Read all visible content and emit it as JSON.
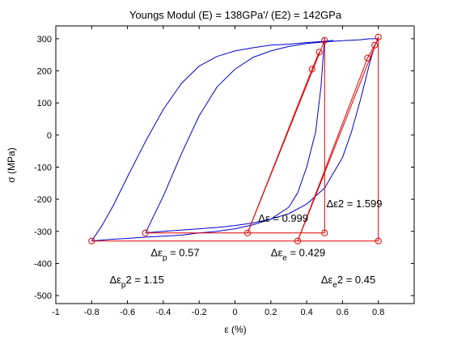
{
  "chart_data": {
    "type": "line",
    "title": "Youngs Modul (E) = 138GPa'/ (E2) = 142GPa",
    "xlabel": "ε (%)",
    "ylabel": "σ (MPa)",
    "xlim": [
      -1,
      1
    ],
    "ylim": [
      -525,
      340
    ],
    "xticks": [
      -1,
      -0.8,
      -0.6,
      -0.4,
      -0.2,
      0,
      0.2,
      0.4,
      0.6,
      0.8
    ],
    "yticks": [
      -500,
      -400,
      -300,
      -200,
      -100,
      0,
      100,
      200,
      300
    ],
    "grid": false,
    "colors": {
      "curve": "#0000cc",
      "markup": "#e00000"
    },
    "series": [
      {
        "style": "blue-line",
        "x": [
          -0.8,
          -0.74,
          -0.68,
          -0.6,
          -0.5,
          -0.4,
          -0.3,
          -0.2,
          -0.1,
          0.0,
          0.1,
          0.2,
          0.3,
          0.4,
          0.5,
          0.55
        ],
        "y": [
          -330,
          -280,
          -220,
          -130,
          -20,
          80,
          160,
          215,
          245,
          262,
          272,
          280,
          283,
          288,
          292,
          295
        ]
      },
      {
        "style": "blue-line",
        "x": [
          -0.8,
          -0.7,
          -0.6,
          -0.5,
          -0.4,
          -0.3,
          -0.2,
          -0.1,
          0.0,
          0.1,
          0.2,
          0.3,
          0.35,
          0.4,
          0.45,
          0.48,
          0.5
        ],
        "y": [
          -330,
          -325,
          -322,
          -318,
          -315,
          -312,
          -305,
          -300,
          -292,
          -280,
          -262,
          -225,
          -180,
          -100,
          10,
          150,
          305
        ]
      },
      {
        "style": "blue-line",
        "x": [
          -0.5,
          -0.4,
          -0.3,
          -0.2,
          -0.1,
          0.0,
          0.1,
          0.2,
          0.3,
          0.4,
          0.5,
          0.6,
          0.7,
          0.75,
          0.8
        ],
        "y": [
          -305,
          -190,
          -60,
          60,
          150,
          205,
          242,
          262,
          276,
          285,
          290,
          294,
          297,
          300,
          300
        ]
      },
      {
        "style": "blue-line",
        "x": [
          -0.5,
          -0.4,
          -0.3,
          -0.2,
          -0.1,
          0.0,
          0.1,
          0.2,
          0.3,
          0.4,
          0.5,
          0.6,
          0.65,
          0.7,
          0.75,
          0.78,
          0.8
        ],
        "y": [
          -305,
          -300,
          -296,
          -292,
          -288,
          -282,
          -274,
          -262,
          -245,
          -215,
          -165,
          -70,
          10,
          110,
          220,
          280,
          300
        ]
      },
      {
        "style": "red-line",
        "x": [
          -0.8,
          0.8,
          0.8,
          0.35,
          0.8
        ],
        "y": [
          -330,
          -330,
          305,
          -330,
          305
        ]
      },
      {
        "style": "red-line",
        "x": [
          -0.5,
          0.5,
          0.5,
          0.07,
          0.5
        ],
        "y": [
          -305,
          -305,
          295,
          -305,
          295
        ]
      },
      {
        "style": "red-line",
        "x": [
          0.07,
          0.43,
          0.47
        ],
        "y": [
          -305,
          205,
          258
        ]
      },
      {
        "style": "red-line",
        "x": [
          0.35,
          0.74,
          0.78
        ],
        "y": [
          -330,
          240,
          280
        ]
      },
      {
        "style": "red-circles",
        "x": [
          -0.8,
          -0.5,
          0.07,
          0.5,
          0.35,
          0.8,
          0.43,
          0.47,
          0.5,
          0.74,
          0.78,
          0.8
        ],
        "y": [
          -330,
          -305,
          -305,
          -305,
          -330,
          -330,
          205,
          258,
          295,
          240,
          280,
          305
        ]
      }
    ],
    "annotations": [
      {
        "text": "Δε2 = 1.599",
        "x": 0.51,
        "y": -225
      },
      {
        "text": "Δε = 0.999",
        "x": 0.13,
        "y": -270
      },
      {
        "text": "Δε",
        "sub": "p",
        "after": " = 0.57",
        "x": -0.47,
        "y": -378
      },
      {
        "text": "Δε",
        "sub": "e",
        "after": " = 0.429",
        "x": 0.2,
        "y": -378
      },
      {
        "text": "Δε",
        "sub": "p",
        "after": "2 = 1.15",
        "x": -0.7,
        "y": -462
      },
      {
        "text": "Δε",
        "sub": "e",
        "after": "2 = 0.45",
        "x": 0.48,
        "y": -462
      }
    ]
  }
}
